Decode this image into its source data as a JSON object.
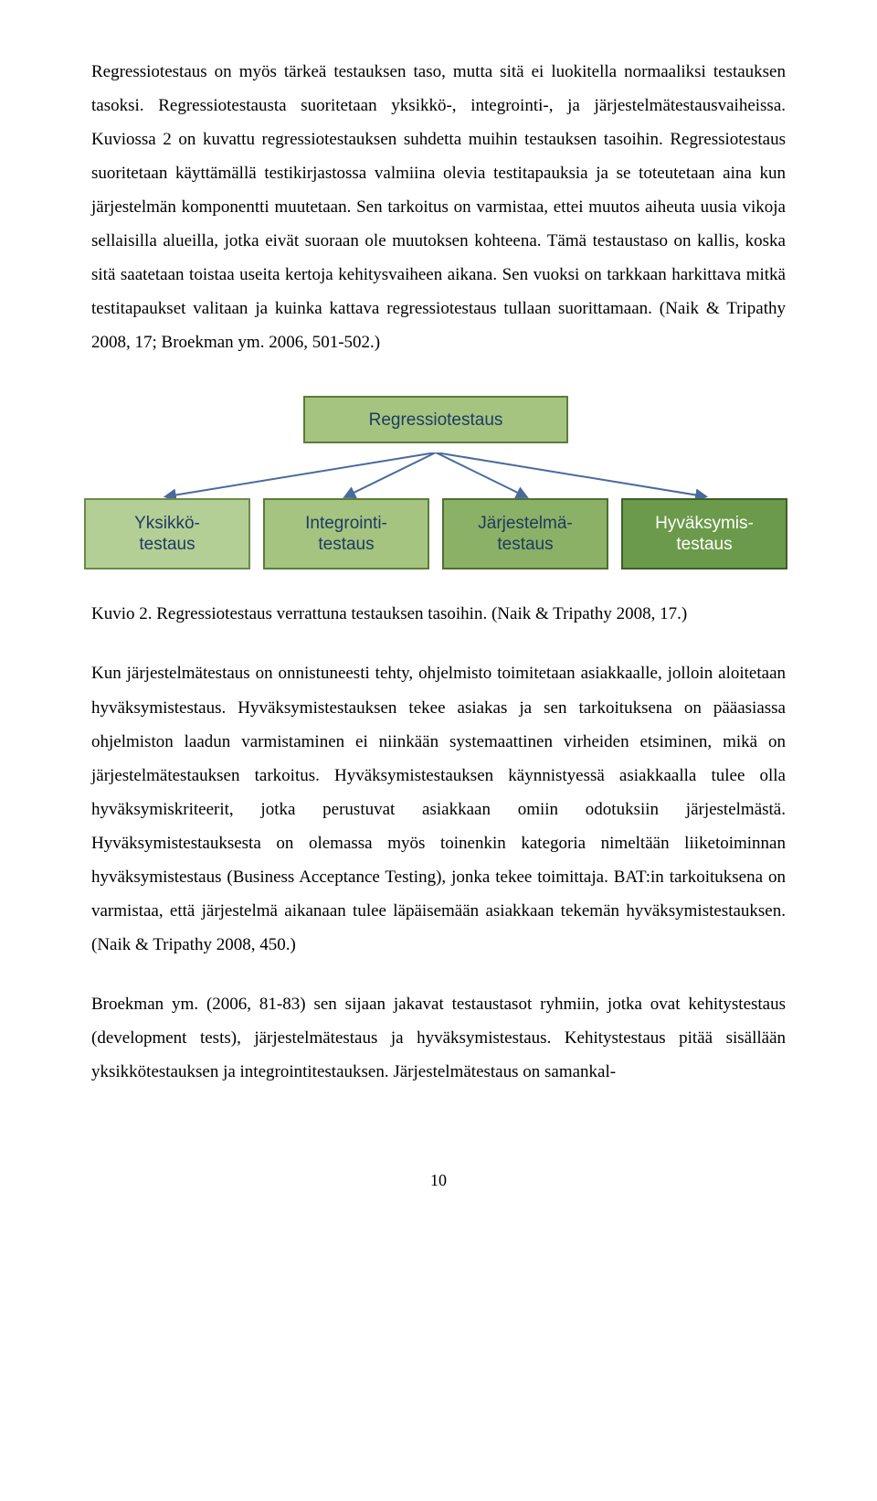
{
  "paragraphs": {
    "p1": "Regressiotestaus on myös tärkeä testauksen taso, mutta sitä ei luokitella normaaliksi testauksen tasoksi. Regressiotestausta suoritetaan yksikkö-, integrointi-, ja järjestelmätestausvaiheissa. Kuviossa 2 on kuvattu regressiotestauksen suhdetta muihin testauksen tasoihin. Regressiotestaus suoritetaan käyttämällä testikirjastossa valmiina olevia testitapauksia ja se toteutetaan aina kun järjestelmän komponentti muutetaan. Sen tarkoitus on varmistaa, ettei muutos aiheuta uusia vikoja sellaisilla alueilla, jotka eivät suoraan ole muutoksen kohteena. Tämä testaustaso on kallis, koska sitä saatetaan toistaa useita kertoja kehitysvaiheen aikana. Sen vuoksi on tarkkaan harkittava mitkä testitapaukset valitaan ja kuinka kattava regressiotestaus tullaan suorittamaan. (Naik & Tripathy 2008, 17; Broekman ym. 2006, 501-502.)",
    "p2": "Kun järjestelmätestaus on onnistuneesti tehty, ohjelmisto toimitetaan asiakkaalle, jolloin aloitetaan hyväksymistestaus. Hyväksymistestauksen tekee asiakas ja sen tarkoituksena on pääasiassa ohjelmiston laadun varmistaminen ei niinkään systemaattinen virheiden etsiminen, mikä on järjestelmätestauksen tarkoitus. Hyväksymistestauksen käynnistyessä asiakkaalla tulee olla hyväksymiskriteerit, jotka perustuvat asiakkaan omiin odotuksiin järjestelmästä. Hyväksymistestauksesta on olemassa myös toinenkin kategoria nimeltään liiketoiminnan hyväksymistestaus (Business Acceptance Testing), jonka tekee toimittaja. BAT:in tarkoituksena on varmistaa, että järjestelmä aikanaan tulee läpäisemään asiakkaan tekemän hyväksymistestauksen. (Naik & Tripathy 2008, 450.)",
    "p3": "Broekman ym. (2006, 81-83) sen sijaan jakavat testaustasot ryhmiin, jotka ovat kehitystestaus (development tests), järjestelmätestaus ja hyväksymistestaus. Kehitystestaus pitää sisällään yksikkötestauksen ja integrointitestauksen. Järjestelmätestaus on samankal-"
  },
  "caption": "Kuvio 2. Regressiotestaus verrattuna testauksen tasoihin. (Naik & Tripathy 2008, 17.)",
  "page_number": "10",
  "diagram": {
    "type": "flowchart",
    "top_box": {
      "label": "Regressiotestaus",
      "fill": "#a4c480",
      "border": "#5a7d3a",
      "text_color": "#1f3a5f",
      "font_size": 19
    },
    "bottom_boxes": [
      {
        "label": "Yksikkö-\ntestaus",
        "fill": "#b4cf96",
        "border": "#6b8a4a",
        "text_color": "#1f3a5f"
      },
      {
        "label": "Integrointi-\ntestaus",
        "fill": "#a4c480",
        "border": "#5a7d3a",
        "text_color": "#1f3a5f"
      },
      {
        "label": "Järjestelmä-\ntestaus",
        "fill": "#8bb166",
        "border": "#4f6e33",
        "text_color": "#1f3a5f"
      },
      {
        "label": "Hyväksymis-\ntestaus",
        "fill": "#6b9a4a",
        "border": "#3f5e2a",
        "text_color": "#ffffff"
      }
    ],
    "connector_color": "#4a6a9c",
    "connector_width": 2,
    "arrowhead_size": 7,
    "font_family": "Arial",
    "box_font_size": 19
  }
}
